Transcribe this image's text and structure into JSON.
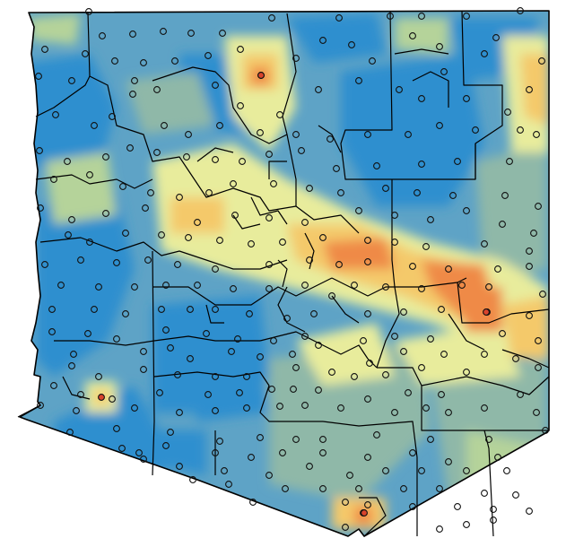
{
  "map": {
    "type": "interpolated-surface-with-station-points",
    "colors": {
      "very_low": "#2e8fcf",
      "low": "#5ea3c6",
      "mid_low": "#8fb8a8",
      "mid": "#b5d39a",
      "mid_high": "#e8ec9c",
      "high": "#f4c96a",
      "very_high": "#ef8a47",
      "peak": "#d9432c",
      "boundary": "#000000",
      "station_fill": "none",
      "station_stroke": "#111111",
      "station_highlight": "#d9432c"
    },
    "station_count_note": ""
  }
}
